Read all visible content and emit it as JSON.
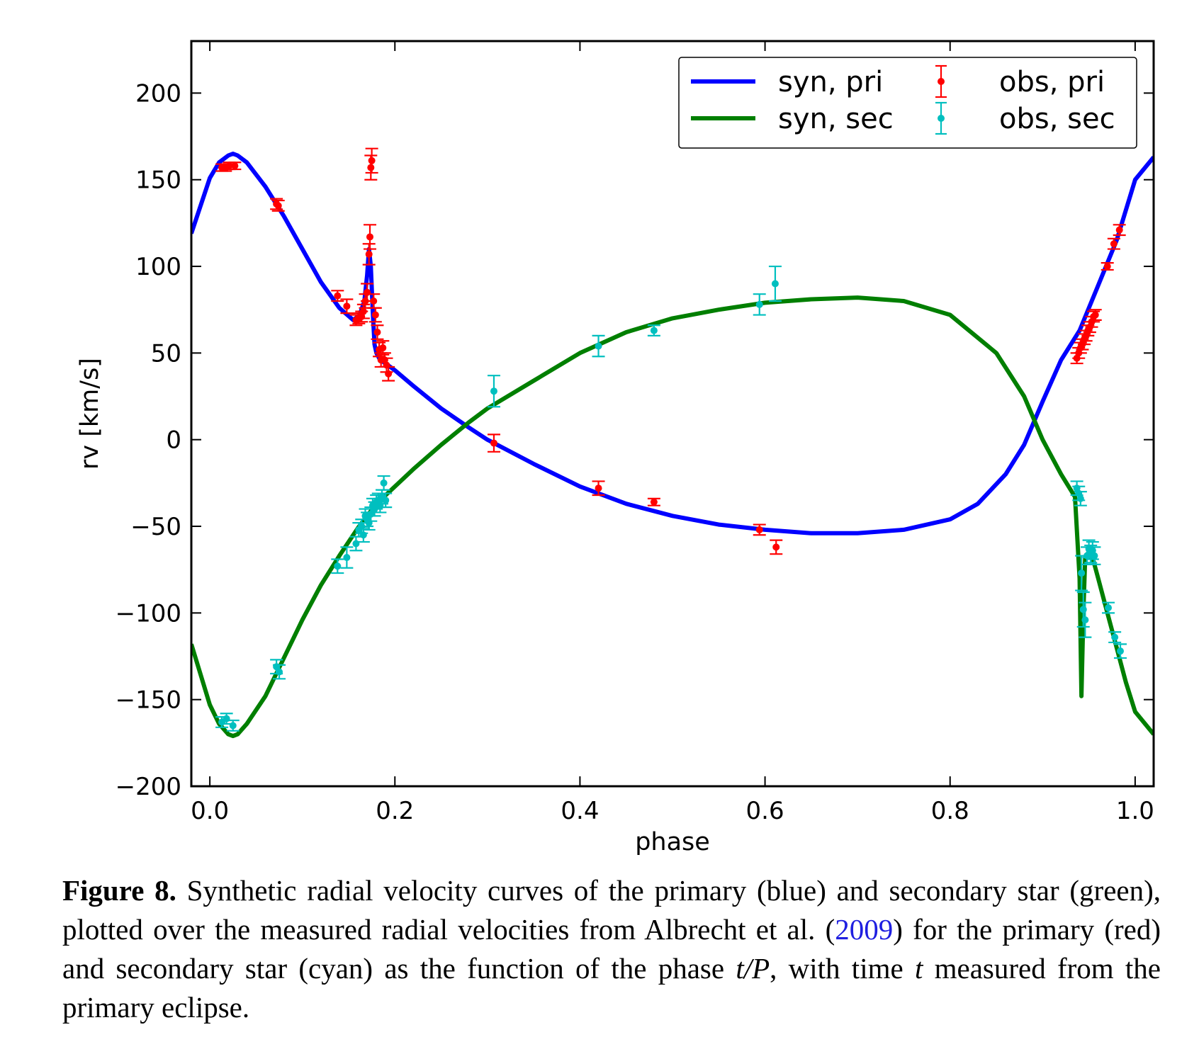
{
  "chart_data": {
    "type": "scatter",
    "xlabel": "phase",
    "ylabel": "rv [km/s]",
    "xlim": [
      -0.02,
      1.02
    ],
    "ylim": [
      -200,
      230
    ],
    "xticks": [
      0.0,
      0.2,
      0.4,
      0.6,
      0.8,
      1.0
    ],
    "xtick_labels": [
      "0.0",
      "0.2",
      "0.4",
      "0.6",
      "0.8",
      "1.0"
    ],
    "yticks": [
      -200,
      -150,
      -100,
      -50,
      0,
      50,
      100,
      150,
      200
    ],
    "ytick_labels": [
      "−200",
      "−150",
      "−100",
      "−50",
      "0",
      "50",
      "100",
      "150",
      "200"
    ],
    "grid": false,
    "legend_position": "top-right",
    "series": [
      {
        "name": "syn, pri",
        "kind": "line",
        "color": "#0000ff",
        "x": [
          -0.02,
          0.0,
          0.01,
          0.02,
          0.025,
          0.03,
          0.04,
          0.06,
          0.08,
          0.1,
          0.12,
          0.14,
          0.155,
          0.162,
          0.167,
          0.17,
          0.172,
          0.174,
          0.176,
          0.178,
          0.18,
          0.184,
          0.19,
          0.2,
          0.22,
          0.25,
          0.28,
          0.3,
          0.35,
          0.4,
          0.45,
          0.5,
          0.55,
          0.6,
          0.65,
          0.7,
          0.75,
          0.8,
          0.83,
          0.86,
          0.88,
          0.9,
          0.92,
          0.94,
          0.96,
          0.98,
          1.0,
          1.02
        ],
        "y": [
          119,
          151,
          160,
          164,
          165,
          164,
          160,
          146,
          129,
          110,
          91,
          76,
          69,
          72,
          80,
          95,
          110,
          100,
          75,
          55,
          50,
          46,
          44,
          40,
          31,
          18,
          7,
          0,
          -14,
          -27,
          -37,
          -44,
          -49,
          -52,
          -54,
          -54,
          -52,
          -46,
          -37,
          -20,
          -3,
          22,
          46,
          63,
          89,
          115,
          150,
          163
        ]
      },
      {
        "name": "syn, sec",
        "kind": "line",
        "color": "#007f00",
        "x": [
          -0.02,
          0.0,
          0.01,
          0.02,
          0.025,
          0.03,
          0.04,
          0.06,
          0.08,
          0.1,
          0.12,
          0.14,
          0.16,
          0.18,
          0.2,
          0.22,
          0.25,
          0.28,
          0.3,
          0.35,
          0.4,
          0.45,
          0.5,
          0.55,
          0.6,
          0.65,
          0.7,
          0.75,
          0.8,
          0.85,
          0.88,
          0.9,
          0.92,
          0.935,
          0.94,
          0.942,
          0.944,
          0.946,
          0.948,
          0.95,
          0.955,
          0.96,
          0.97,
          0.98,
          0.99,
          1.0,
          1.02
        ],
        "y": [
          -118,
          -153,
          -164,
          -170,
          -171,
          -170,
          -164,
          -148,
          -126,
          -104,
          -84,
          -67,
          -51,
          -37,
          -27,
          -17,
          -3,
          10,
          18,
          34,
          50,
          62,
          70,
          75,
          79,
          81,
          82,
          80,
          72,
          50,
          25,
          0,
          -20,
          -33,
          -80,
          -148,
          -100,
          -68,
          -66,
          -66,
          -70,
          -80,
          -100,
          -120,
          -140,
          -157,
          -170
        ]
      },
      {
        "name": "obs, pri",
        "kind": "errorbar",
        "color": "#ff0000",
        "points": [
          {
            "x": 0.013,
            "y": 157,
            "err": 2
          },
          {
            "x": 0.017,
            "y": 157,
            "err": 2
          },
          {
            "x": 0.021,
            "y": 158,
            "err": 2
          },
          {
            "x": 0.027,
            "y": 158,
            "err": 2
          },
          {
            "x": 0.072,
            "y": 136,
            "err": 3
          },
          {
            "x": 0.074,
            "y": 135,
            "err": 3
          },
          {
            "x": 0.138,
            "y": 83,
            "err": 3
          },
          {
            "x": 0.148,
            "y": 77,
            "err": 4
          },
          {
            "x": 0.158,
            "y": 69,
            "err": 3
          },
          {
            "x": 0.161,
            "y": 70,
            "err": 3
          },
          {
            "x": 0.164,
            "y": 71,
            "err": 3
          },
          {
            "x": 0.166,
            "y": 74,
            "err": 4
          },
          {
            "x": 0.168,
            "y": 80,
            "err": 4
          },
          {
            "x": 0.17,
            "y": 85,
            "err": 5
          },
          {
            "x": 0.172,
            "y": 107,
            "err": 6
          },
          {
            "x": 0.173,
            "y": 117,
            "err": 7
          },
          {
            "x": 0.174,
            "y": 157,
            "err": 7
          },
          {
            "x": 0.175,
            "y": 161,
            "err": 7
          },
          {
            "x": 0.177,
            "y": 80,
            "err": 4
          },
          {
            "x": 0.179,
            "y": 72,
            "err": 4
          },
          {
            "x": 0.181,
            "y": 62,
            "err": 4
          },
          {
            "x": 0.183,
            "y": 52,
            "err": 4
          },
          {
            "x": 0.185,
            "y": 46,
            "err": 4
          },
          {
            "x": 0.187,
            "y": 53,
            "err": 4
          },
          {
            "x": 0.189,
            "y": 46,
            "err": 4
          },
          {
            "x": 0.191,
            "y": 43,
            "err": 4
          },
          {
            "x": 0.193,
            "y": 38,
            "err": 4
          },
          {
            "x": 0.307,
            "y": -2,
            "err": 5
          },
          {
            "x": 0.42,
            "y": -28,
            "err": 4
          },
          {
            "x": 0.48,
            "y": -36,
            "err": 2
          },
          {
            "x": 0.594,
            "y": -52,
            "err": 3
          },
          {
            "x": 0.612,
            "y": -62,
            "err": 4
          },
          {
            "x": 0.937,
            "y": 47,
            "err": 3
          },
          {
            "x": 0.939,
            "y": 50,
            "err": 3
          },
          {
            "x": 0.941,
            "y": 53,
            "err": 3
          },
          {
            "x": 0.943,
            "y": 55,
            "err": 3
          },
          {
            "x": 0.945,
            "y": 58,
            "err": 3
          },
          {
            "x": 0.947,
            "y": 60,
            "err": 3
          },
          {
            "x": 0.949,
            "y": 63,
            "err": 3
          },
          {
            "x": 0.951,
            "y": 65,
            "err": 3
          },
          {
            "x": 0.953,
            "y": 68,
            "err": 3
          },
          {
            "x": 0.955,
            "y": 71,
            "err": 3
          },
          {
            "x": 0.957,
            "y": 72,
            "err": 3
          },
          {
            "x": 0.97,
            "y": 100,
            "err": 2
          },
          {
            "x": 0.977,
            "y": 113,
            "err": 3
          },
          {
            "x": 0.983,
            "y": 121,
            "err": 3
          }
        ]
      },
      {
        "name": "obs, sec",
        "kind": "errorbar",
        "color": "#00bfbf",
        "points": [
          {
            "x": 0.013,
            "y": -163,
            "err": 3
          },
          {
            "x": 0.018,
            "y": -161,
            "err": 3
          },
          {
            "x": 0.025,
            "y": -165,
            "err": 3
          },
          {
            "x": 0.072,
            "y": -131,
            "err": 4
          },
          {
            "x": 0.075,
            "y": -134,
            "err": 4
          },
          {
            "x": 0.138,
            "y": -73,
            "err": 4
          },
          {
            "x": 0.148,
            "y": -68,
            "err": 6
          },
          {
            "x": 0.158,
            "y": -60,
            "err": 4
          },
          {
            "x": 0.161,
            "y": -52,
            "err": 4
          },
          {
            "x": 0.164,
            "y": -50,
            "err": 4
          },
          {
            "x": 0.166,
            "y": -55,
            "err": 4
          },
          {
            "x": 0.168,
            "y": -44,
            "err": 4
          },
          {
            "x": 0.17,
            "y": -46,
            "err": 4
          },
          {
            "x": 0.172,
            "y": -48,
            "err": 4
          },
          {
            "x": 0.174,
            "y": -43,
            "err": 4
          },
          {
            "x": 0.176,
            "y": -38,
            "err": 4
          },
          {
            "x": 0.178,
            "y": -40,
            "err": 4
          },
          {
            "x": 0.18,
            "y": -36,
            "err": 4
          },
          {
            "x": 0.182,
            "y": -35,
            "err": 4
          },
          {
            "x": 0.184,
            "y": -38,
            "err": 4
          },
          {
            "x": 0.186,
            "y": -33,
            "err": 4
          },
          {
            "x": 0.188,
            "y": -25,
            "err": 4
          },
          {
            "x": 0.19,
            "y": -35,
            "err": 4
          },
          {
            "x": 0.307,
            "y": 28,
            "err": 9
          },
          {
            "x": 0.42,
            "y": 54,
            "err": 6
          },
          {
            "x": 0.48,
            "y": 63,
            "err": 3
          },
          {
            "x": 0.594,
            "y": 78,
            "err": 6
          },
          {
            "x": 0.611,
            "y": 90,
            "err": 10
          },
          {
            "x": 0.937,
            "y": -28,
            "err": 4
          },
          {
            "x": 0.939,
            "y": -31,
            "err": 4
          },
          {
            "x": 0.941,
            "y": -34,
            "err": 4
          },
          {
            "x": 0.942,
            "y": -77,
            "err": 10
          },
          {
            "x": 0.944,
            "y": -98,
            "err": 10
          },
          {
            "x": 0.946,
            "y": -104,
            "err": 10
          },
          {
            "x": 0.948,
            "y": -67,
            "err": 5
          },
          {
            "x": 0.95,
            "y": -63,
            "err": 5
          },
          {
            "x": 0.952,
            "y": -66,
            "err": 5
          },
          {
            "x": 0.954,
            "y": -64,
            "err": 5
          },
          {
            "x": 0.956,
            "y": -67,
            "err": 5
          },
          {
            "x": 0.971,
            "y": -97,
            "err": 3
          },
          {
            "x": 0.978,
            "y": -114,
            "err": 3
          },
          {
            "x": 0.984,
            "y": -122,
            "err": 4
          }
        ]
      }
    ]
  },
  "caption": {
    "label": "Figure 8.",
    "text_before_cite": " Synthetic radial velocity curves of the primary (blue) and secondary star (green), plotted over the measured radial velocities from Albrecht et al. (",
    "cite_year": "2009",
    "text_after_cite": ") for the primary (red) and secondary star (cyan) as the function of the phase ",
    "phase_symbol": "t/P",
    "text_middle": ", with time ",
    "time_symbol": "t",
    "text_end": " measured from the primary eclipse."
  }
}
